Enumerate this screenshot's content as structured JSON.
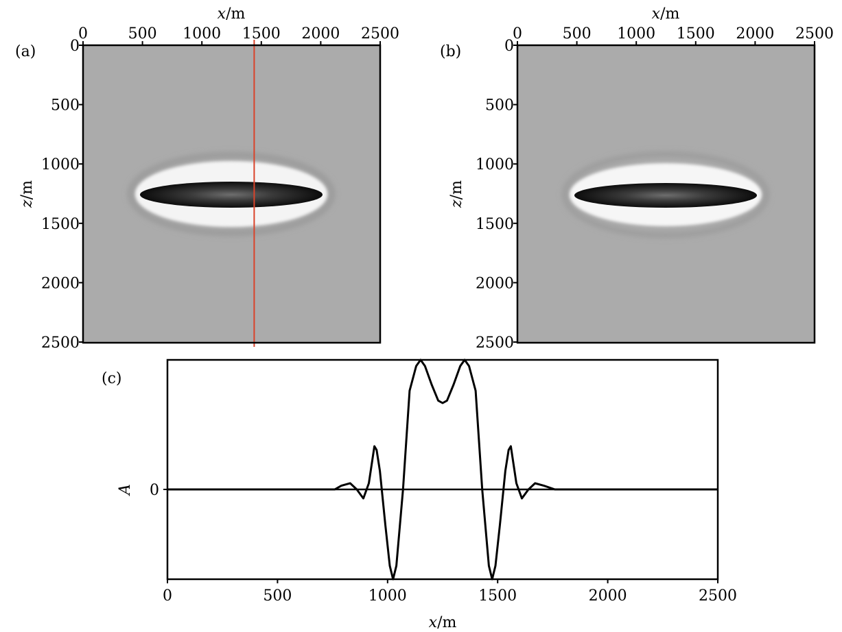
{
  "chart_data": [
    {
      "panel": "(a)",
      "type": "heatmap",
      "xlabel_var": "x",
      "xlabel_unit": "/m",
      "ylabel_var": "z",
      "ylabel_unit": "/m",
      "xlim": [
        0,
        2500
      ],
      "ylim": [
        0,
        2500
      ],
      "x_ticks": [
        "0",
        "500",
        "1000",
        "1500",
        "2000",
        "2500"
      ],
      "y_ticks": [
        "0",
        "500",
        "1000",
        "1500",
        "2000",
        "2500"
      ],
      "feature": {
        "center_x": 1250,
        "center_z": 1250,
        "half_width_x": 780,
        "half_height_z": 150
      },
      "marker_line_x": 1440,
      "marker_color": "#d9432a"
    },
    {
      "panel": "(b)",
      "type": "heatmap",
      "xlabel_var": "x",
      "xlabel_unit": "/m",
      "ylabel_var": "z",
      "ylabel_unit": "/m",
      "xlim": [
        0,
        2500
      ],
      "ylim": [
        0,
        2500
      ],
      "x_ticks": [
        "0",
        "500",
        "1000",
        "1500",
        "2000",
        "2500"
      ],
      "y_ticks": [
        "0",
        "500",
        "1000",
        "1500",
        "2000",
        "2500"
      ],
      "feature": {
        "center_x": 1250,
        "center_z": 1250,
        "half_width_x": 780,
        "half_height_z": 150
      }
    },
    {
      "panel": "(c)",
      "type": "line",
      "xlabel_var": "x",
      "xlabel_unit": "/m",
      "ylabel_var": "A",
      "xlim": [
        0,
        2500
      ],
      "x_ticks": [
        "0",
        "500",
        "1000",
        "2000",
        "1500",
        "2500"
      ],
      "y_ticks": [
        "0"
      ],
      "series": [
        {
          "x": [
            0,
            640,
            700,
            760,
            790,
            830,
            860,
            890,
            915,
            940,
            950,
            965,
            990,
            1010,
            1025,
            1040,
            1070,
            1100,
            1130,
            1150,
            1170,
            1200,
            1230,
            1250,
            1270,
            1300,
            1330,
            1350,
            1370,
            1400,
            1430,
            1460,
            1475,
            1490,
            1510,
            1535,
            1550,
            1560,
            1585,
            1610,
            1640,
            1670,
            1710,
            1760,
            1860,
            2500
          ],
          "y": [
            0,
            0,
            0,
            0,
            0.03,
            0.05,
            0.0,
            -0.1,
            0.05,
            0.35,
            0.32,
            0.15,
            -0.4,
            -0.85,
            -1.0,
            -0.85,
            0.0,
            0.8,
            1.0,
            1.05,
            1.0,
            0.85,
            0.72,
            0.7,
            0.72,
            0.85,
            1.0,
            1.05,
            1.0,
            0.8,
            0.0,
            -0.85,
            -1.0,
            -0.85,
            -0.4,
            0.15,
            0.32,
            0.35,
            0.05,
            -0.1,
            0.0,
            0.05,
            0.03,
            0,
            0,
            0
          ]
        }
      ]
    }
  ]
}
